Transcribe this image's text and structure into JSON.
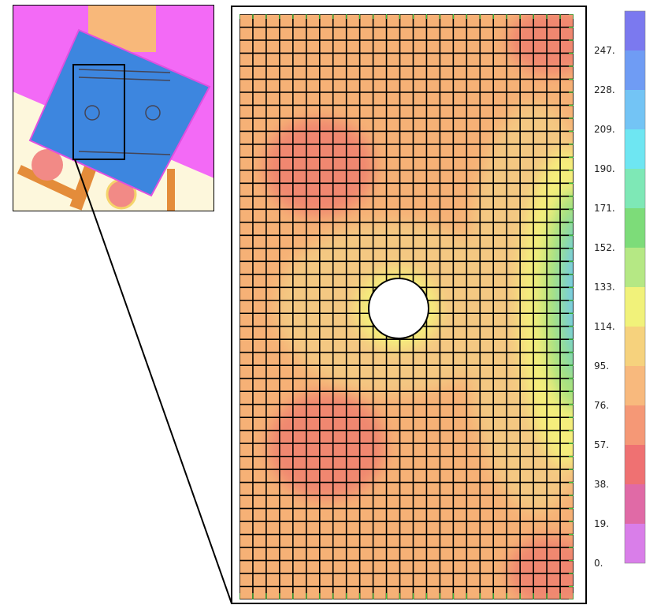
{
  "legend": {
    "labels": [
      "247.",
      "228.",
      "209.",
      "190.",
      "171.",
      "152.",
      "133.",
      "114.",
      "95.",
      "76.",
      "57.",
      "38.",
      "19.",
      "0."
    ],
    "colors": [
      "#7b79ef",
      "#6f9cf4",
      "#73c4f5",
      "#6ee6f2",
      "#7ee8b6",
      "#7ddc79",
      "#b5e884",
      "#f1f27a",
      "#f6d27d",
      "#f8b97d",
      "#f59876",
      "#ef7172",
      "#e06aa6",
      "#d97ee9"
    ]
  },
  "contour": {
    "base_color": "#f6b176",
    "hot_color": "#f0876f",
    "warm_color": "#f4c882",
    "cool_colors": [
      "#f5ee7c",
      "#a8e27e",
      "#7ed8b0",
      "#77c7f0",
      "#80a3f2"
    ],
    "edge_marker_color": "#3ec63e",
    "mesh_color": "#000000"
  },
  "inset": {
    "background_colors": [
      "#f36af6",
      "#f8b87a",
      "#3d86df",
      "#fdf7dc",
      "#f28a86",
      "#e48c3a"
    ]
  }
}
